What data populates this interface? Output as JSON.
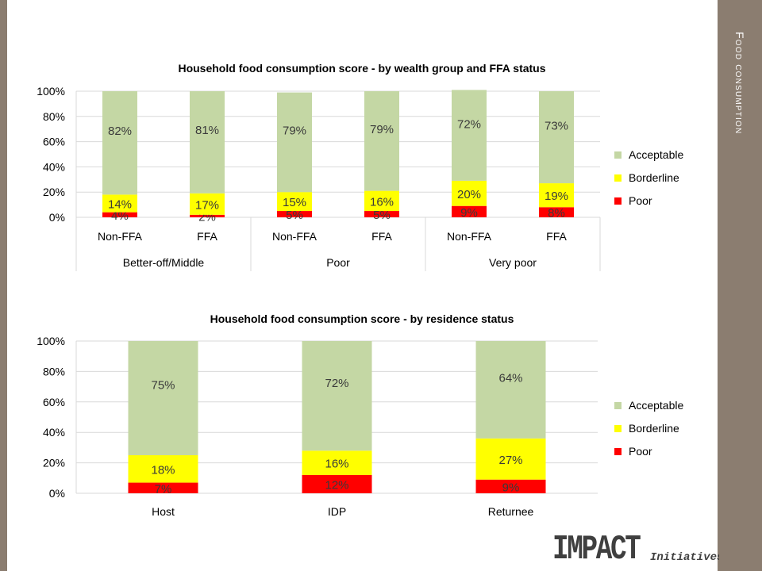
{
  "slide": {
    "section_title": "Food consumption",
    "logo_text": "IMPACT",
    "logo_subtext": "Initiatives"
  },
  "colors": {
    "acceptable": "#c4d7a4",
    "borderline": "#ffff00",
    "poor": "#ff0000",
    "frame": "#8b7d70"
  },
  "chart_data": [
    {
      "type": "bar",
      "stacked": true,
      "title": "Household food consumption score - by wealth group and FFA status",
      "categories": [
        "Non-FFA",
        "FFA",
        "Non-FFA",
        "FFA",
        "Non-FFA",
        "FFA"
      ],
      "groups": [
        {
          "label": "Better-off/Middle",
          "span": 2
        },
        {
          "label": "Poor",
          "span": 2
        },
        {
          "label": "Very poor",
          "span": 2
        }
      ],
      "series": [
        {
          "name": "Poor",
          "color": "#ff0000",
          "values": [
            4,
            2,
            5,
            5,
            9,
            8
          ],
          "labels": [
            "4%",
            "2%",
            "5%",
            "5%",
            "9%",
            "8%"
          ]
        },
        {
          "name": "Borderline",
          "color": "#ffff00",
          "values": [
            14,
            17,
            15,
            16,
            20,
            19
          ],
          "labels": [
            "14%",
            "17%",
            "15%",
            "16%",
            "20%",
            "19%"
          ]
        },
        {
          "name": "Acceptable",
          "color": "#c4d7a4",
          "values": [
            82,
            81,
            79,
            79,
            72,
            73
          ],
          "labels": [
            "82%",
            "81%",
            "79%",
            "79%",
            "72%",
            "73%"
          ]
        }
      ],
      "legend": [
        "Acceptable",
        "Borderline",
        "Poor"
      ],
      "legend_position": "right",
      "ylim": [
        0,
        100
      ],
      "yticks": [
        "0%",
        "20%",
        "40%",
        "60%",
        "80%",
        "100%"
      ],
      "grid": true
    },
    {
      "type": "bar",
      "stacked": true,
      "title": "Household food consumption score - by residence status",
      "categories": [
        "Host",
        "IDP",
        "Returnee"
      ],
      "series": [
        {
          "name": "Poor",
          "color": "#ff0000",
          "values": [
            7,
            12,
            9
          ],
          "labels": [
            "7%",
            "12%",
            "9%"
          ]
        },
        {
          "name": "Borderline",
          "color": "#ffff00",
          "values": [
            18,
            16,
            27
          ],
          "labels": [
            "18%",
            "16%",
            "27%"
          ]
        },
        {
          "name": "Acceptable",
          "color": "#c4d7a4",
          "values": [
            75,
            72,
            64
          ],
          "labels": [
            "75%",
            "72%",
            "64%"
          ]
        }
      ],
      "legend": [
        "Acceptable",
        "Borderline",
        "Poor"
      ],
      "legend_position": "right",
      "ylim": [
        0,
        100
      ],
      "yticks": [
        "0%",
        "20%",
        "40%",
        "60%",
        "80%",
        "100%"
      ],
      "grid": true
    }
  ]
}
